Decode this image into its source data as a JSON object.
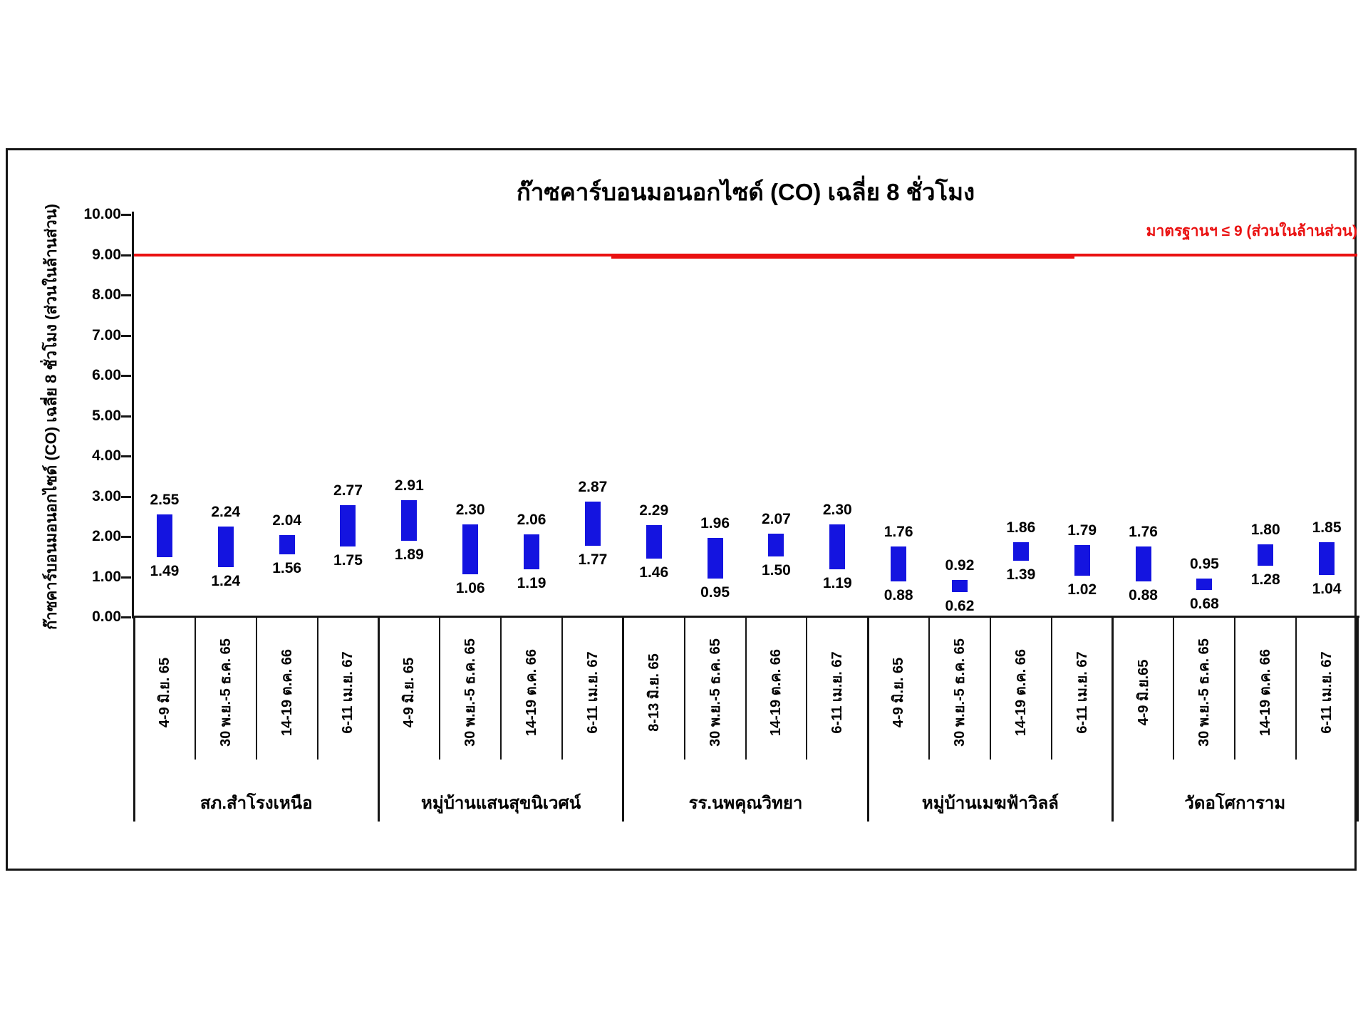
{
  "chart_data": {
    "type": "floating-bar-range",
    "title": "ก๊าซคาร์บอนมอนอกไซด์ (CO) เฉลี่ย 8 ชั่วโมง",
    "y_axis_label": "ก๊าซคาร์บอนมอนอกไซด์ (CO) เฉลี่ย 8 ชั่วโมง (ส่วนในล้านส่วน)",
    "xlabel": "",
    "ylim": [
      0,
      10
    ],
    "y_tick_step": 1,
    "y_tick_decimals": 2,
    "value_decimals": 2,
    "grid": false,
    "legend_position": "none",
    "bar_color": "#1414e0",
    "axis_color": "#151515",
    "standard_line": {
      "value": 9,
      "label": "มาตรฐานฯ ≤ 9 (ส่วนในล้านส่วน)",
      "color": "#ea1111"
    },
    "groups": [
      {
        "station": "สภ.สำโรงเหนือ",
        "bars": [
          {
            "period": "4-9 มิ.ย. 65",
            "min": 1.49,
            "max": 2.55
          },
          {
            "period": "30 พ.ย.-5 ธ.ค. 65",
            "min": 1.24,
            "max": 2.24
          },
          {
            "period": "14-19 ต.ค. 66",
            "min": 1.56,
            "max": 2.04
          },
          {
            "period": "6-11 เม.ย. 67",
            "min": 1.75,
            "max": 2.77
          }
        ]
      },
      {
        "station": "หมู่บ้านแสนสุขนิเวศน์",
        "bars": [
          {
            "period": "4-9 มิ.ย. 65",
            "min": 1.89,
            "max": 2.91
          },
          {
            "period": "30 พ.ย.-5 ธ.ค. 65",
            "min": 1.06,
            "max": 2.3
          },
          {
            "period": "14-19 ต.ค. 66",
            "min": 1.19,
            "max": 2.06
          },
          {
            "period": "6-11 เม.ย. 67",
            "min": 1.77,
            "max": 2.87
          }
        ]
      },
      {
        "station": "รร.นพคุณวิทยา",
        "bars": [
          {
            "period": "8-13 มิ.ย. 65",
            "min": 1.46,
            "max": 2.29
          },
          {
            "period": "30 พ.ย.-5 ธ.ค. 65",
            "min": 0.95,
            "max": 1.96
          },
          {
            "period": "14-19 ต.ค. 66",
            "min": 1.5,
            "max": 2.07
          },
          {
            "period": "6-11 เม.ย. 67",
            "min": 1.19,
            "max": 2.3
          }
        ]
      },
      {
        "station": "หมู่บ้านเมฆฟ้าวิลล์",
        "bars": [
          {
            "period": "4-9 มิ.ย. 65",
            "min": 0.88,
            "max": 1.76
          },
          {
            "period": "30 พ.ย.-5 ธ.ค. 65",
            "min": 0.62,
            "max": 0.92
          },
          {
            "period": "14-19 ต.ค. 66",
            "min": 1.39,
            "max": 1.86
          },
          {
            "period": "6-11 เม.ย. 67",
            "min": 1.02,
            "max": 1.79
          }
        ]
      },
      {
        "station": "วัดอโศการาม",
        "bars": [
          {
            "period": "4-9 มิ.ย.65",
            "min": 0.88,
            "max": 1.76
          },
          {
            "period": "30 พ.ย.-5 ธ.ค. 65",
            "min": 0.68,
            "max": 0.95
          },
          {
            "period": "14-19 ต.ค. 66",
            "min": 1.28,
            "max": 1.8
          },
          {
            "period": "6-11 เม.ย. 67",
            "min": 1.04,
            "max": 1.85
          }
        ]
      }
    ]
  }
}
